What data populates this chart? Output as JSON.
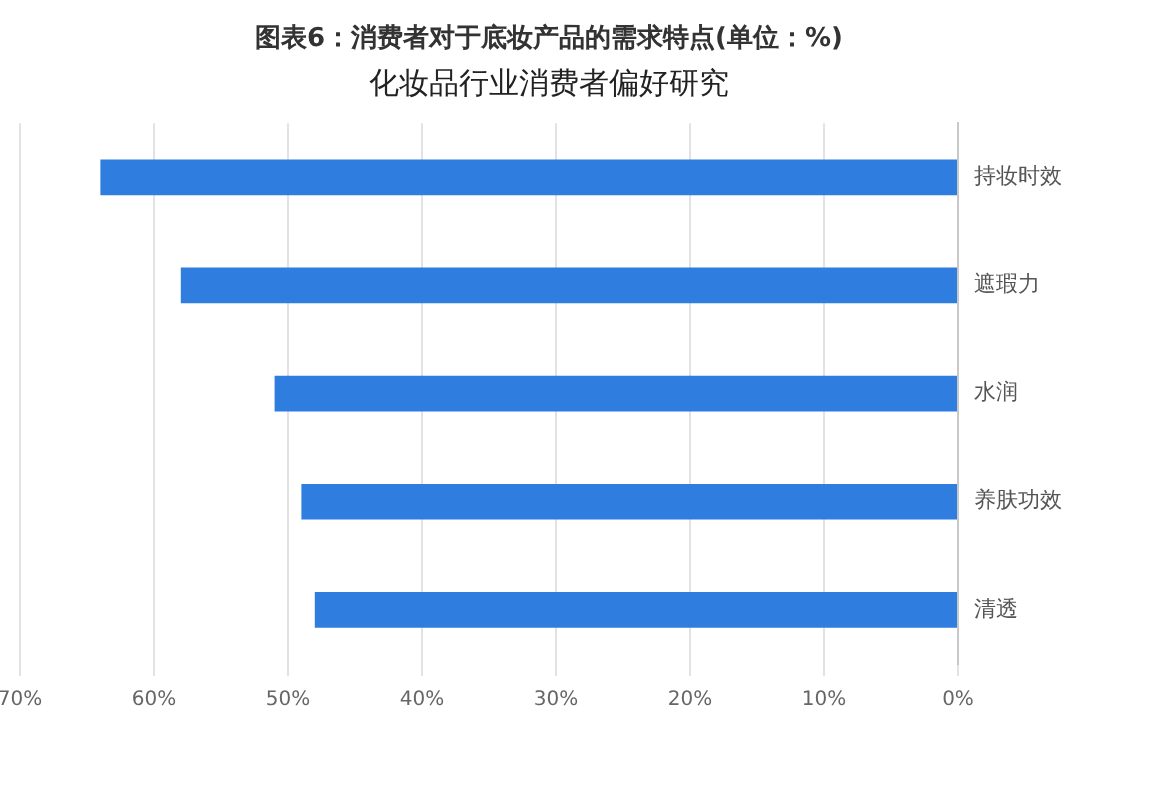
{
  "chart_data": {
    "type": "bar",
    "orientation": "horizontal",
    "title": "图表6：消费者对于底妆产品的需求特点(单位：%)",
    "subtitle": "化妆品行业消费者偏好研究",
    "categories": [
      "持妆时效",
      "遮瑕力",
      "水润",
      "养肤功效",
      "清透"
    ],
    "values": [
      64,
      58,
      51,
      49,
      48
    ],
    "color": "#2e7ddf",
    "xlim": [
      70,
      0
    ],
    "xticks": [
      {
        "value": 0,
        "label": "0%"
      },
      {
        "value": 10,
        "label": "10%"
      },
      {
        "value": 20,
        "label": "20%"
      },
      {
        "value": 30,
        "label": "30%"
      },
      {
        "value": 40,
        "label": "40%"
      },
      {
        "value": 50,
        "label": "50%"
      },
      {
        "value": 60,
        "label": "60%"
      },
      {
        "value": 70,
        "label": "70%"
      }
    ],
    "grid": "x",
    "legend": false
  }
}
